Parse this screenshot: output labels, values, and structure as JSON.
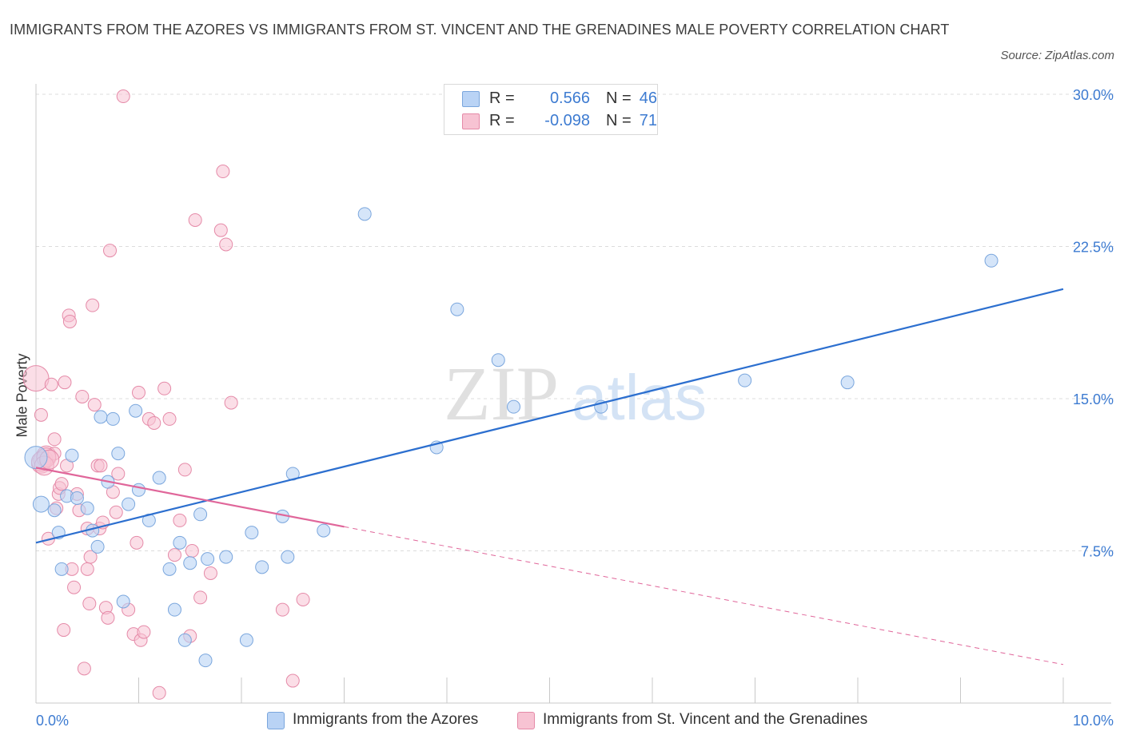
{
  "header": {
    "title": "IMMIGRANTS FROM THE AZORES VS IMMIGRANTS FROM ST. VINCENT AND THE GRENADINES MALE POVERTY CORRELATION CHART",
    "source": "Source: ZipAtlas.com"
  },
  "legend": {
    "rows": [
      {
        "r_label": "R =",
        "r_value": "0.566",
        "n_label": "N =",
        "n_value": "46"
      },
      {
        "r_label": "R =",
        "r_value": "-0.098",
        "n_label": "N =",
        "n_value": "71"
      }
    ]
  },
  "watermark": {
    "zip": "ZIP",
    "atlas": "atlas"
  },
  "colors": {
    "blue_fill": "#b9d3f5",
    "blue_stroke": "#7aa6dd",
    "blue_line": "#2c6fcf",
    "pink_fill": "#f7c3d3",
    "pink_stroke": "#e58aa8",
    "pink_line": "#e0669a",
    "axis_text": "#3d7bd1",
    "grid": "#dcdcdc"
  },
  "chart_data": {
    "type": "scatter",
    "title": "IMMIGRANTS FROM THE AZORES VS IMMIGRANTS FROM ST. VINCENT AND THE GRENADINES MALE POVERTY CORRELATION CHART",
    "xlabel": "",
    "ylabel": "Male Poverty",
    "xlim": [
      0,
      10
    ],
    "ylim": [
      0,
      30
    ],
    "x_tick_labels": [
      "0.0%",
      "10.0%"
    ],
    "y_ticks": [
      7.5,
      15.0,
      22.5,
      30.0
    ],
    "y_tick_labels": [
      "7.5%",
      "15.0%",
      "22.5%",
      "30.0%"
    ],
    "grid": true,
    "legend_position": "top-center",
    "series": [
      {
        "name": "Immigrants from the Azores",
        "color": "#b9d3f5",
        "trend": {
          "x": [
            0,
            10
          ],
          "y": [
            7.9,
            20.4
          ],
          "dashed_from": null
        },
        "points": [
          [
            0.0,
            12.1
          ],
          [
            0.05,
            9.8
          ],
          [
            0.18,
            9.5
          ],
          [
            0.22,
            8.4
          ],
          [
            0.25,
            6.6
          ],
          [
            0.3,
            10.2
          ],
          [
            0.35,
            12.2
          ],
          [
            0.4,
            10.1
          ],
          [
            0.5,
            9.6
          ],
          [
            0.55,
            8.5
          ],
          [
            0.6,
            7.7
          ],
          [
            0.63,
            14.1
          ],
          [
            0.7,
            10.9
          ],
          [
            0.75,
            14.0
          ],
          [
            0.8,
            12.3
          ],
          [
            0.85,
            5.0
          ],
          [
            0.9,
            9.8
          ],
          [
            0.97,
            14.4
          ],
          [
            1.0,
            10.5
          ],
          [
            1.1,
            9.0
          ],
          [
            1.2,
            11.1
          ],
          [
            1.3,
            6.6
          ],
          [
            1.35,
            4.6
          ],
          [
            1.4,
            7.9
          ],
          [
            1.45,
            3.1
          ],
          [
            1.5,
            6.9
          ],
          [
            1.6,
            9.3
          ],
          [
            1.65,
            2.1
          ],
          [
            1.67,
            7.1
          ],
          [
            1.85,
            7.2
          ],
          [
            2.05,
            3.1
          ],
          [
            2.1,
            8.4
          ],
          [
            2.2,
            6.7
          ],
          [
            2.4,
            9.2
          ],
          [
            2.45,
            7.2
          ],
          [
            2.5,
            11.3
          ],
          [
            2.8,
            8.5
          ],
          [
            3.2,
            24.1
          ],
          [
            3.9,
            12.6
          ],
          [
            4.1,
            19.4
          ],
          [
            4.5,
            16.9
          ],
          [
            4.65,
            14.6
          ],
          [
            5.5,
            14.6
          ],
          [
            6.9,
            15.9
          ],
          [
            7.9,
            15.8
          ],
          [
            9.3,
            21.8
          ]
        ]
      },
      {
        "name": "Immigrants from St. Vincent and the Grenadines",
        "color": "#f7c3d3",
        "trend": {
          "x": [
            0,
            10
          ],
          "y": [
            11.6,
            1.9
          ],
          "dashed_from": 3.0
        },
        "points": [
          [
            0.0,
            16.0
          ],
          [
            0.05,
            11.8
          ],
          [
            0.05,
            14.2
          ],
          [
            0.07,
            12.0
          ],
          [
            0.1,
            12.2
          ],
          [
            0.12,
            8.1
          ],
          [
            0.15,
            15.7
          ],
          [
            0.18,
            13.0
          ],
          [
            0.18,
            12.3
          ],
          [
            0.2,
            9.6
          ],
          [
            0.22,
            10.3
          ],
          [
            0.23,
            10.6
          ],
          [
            0.25,
            10.8
          ],
          [
            0.27,
            3.6
          ],
          [
            0.28,
            15.8
          ],
          [
            0.3,
            11.7
          ],
          [
            0.32,
            19.1
          ],
          [
            0.33,
            18.8
          ],
          [
            0.35,
            6.6
          ],
          [
            0.37,
            5.7
          ],
          [
            0.4,
            10.3
          ],
          [
            0.42,
            9.5
          ],
          [
            0.45,
            15.1
          ],
          [
            0.47,
            1.7
          ],
          [
            0.5,
            8.6
          ],
          [
            0.52,
            4.9
          ],
          [
            0.53,
            7.2
          ],
          [
            0.55,
            19.6
          ],
          [
            0.57,
            14.7
          ],
          [
            0.6,
            11.7
          ],
          [
            0.62,
            8.6
          ],
          [
            0.63,
            11.7
          ],
          [
            0.65,
            8.9
          ],
          [
            0.68,
            4.7
          ],
          [
            0.7,
            4.2
          ],
          [
            0.72,
            22.3
          ],
          [
            0.75,
            10.4
          ],
          [
            0.78,
            9.4
          ],
          [
            0.8,
            11.3
          ],
          [
            0.85,
            29.9
          ],
          [
            0.9,
            4.6
          ],
          [
            0.95,
            3.4
          ],
          [
            0.98,
            7.9
          ],
          [
            1.0,
            15.3
          ],
          [
            1.02,
            3.1
          ],
          [
            1.05,
            3.5
          ],
          [
            1.1,
            14.0
          ],
          [
            1.15,
            13.8
          ],
          [
            1.2,
            0.5
          ],
          [
            1.25,
            15.5
          ],
          [
            1.3,
            14.0
          ],
          [
            1.35,
            7.3
          ],
          [
            1.4,
            9.0
          ],
          [
            1.45,
            11.5
          ],
          [
            1.5,
            3.3
          ],
          [
            1.52,
            7.5
          ],
          [
            1.55,
            23.8
          ],
          [
            1.6,
            5.2
          ],
          [
            1.7,
            6.4
          ],
          [
            1.8,
            23.3
          ],
          [
            1.82,
            26.2
          ],
          [
            1.85,
            22.6
          ],
          [
            1.9,
            14.8
          ],
          [
            2.4,
            4.6
          ],
          [
            2.5,
            1.1
          ],
          [
            2.6,
            5.1
          ],
          [
            0.05,
            11.9
          ],
          [
            0.1,
            12.1
          ],
          [
            0.08,
            11.7
          ],
          [
            0.13,
            12.0
          ],
          [
            0.5,
            6.6
          ]
        ]
      }
    ]
  },
  "bottom_legend": {
    "items": [
      "Immigrants from the Azores",
      "Immigrants from St. Vincent and the Grenadines"
    ]
  }
}
